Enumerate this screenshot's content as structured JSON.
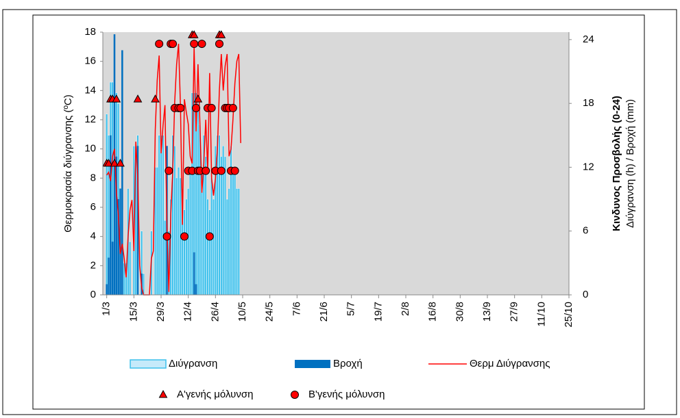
{
  "chart_data": {
    "type": "combo",
    "y_label": "Θερμοκρασία διύγρανσης (ºC)",
    "y2_label": "Κινδυνος Προσβολής (0-24)",
    "y2_sublabel": "Διύγρανση (h) / Βροχή (mm)",
    "xlim": [
      -2,
      238
    ],
    "xticks": [
      {
        "value": 0,
        "label": "1/3"
      },
      {
        "value": 14,
        "label": "15/3"
      },
      {
        "value": 28,
        "label": "29/3"
      },
      {
        "value": 42,
        "label": "12/4"
      },
      {
        "value": 56,
        "label": "26/4"
      },
      {
        "value": 70,
        "label": "10/5"
      },
      {
        "value": 84,
        "label": "24/5"
      },
      {
        "value": 98,
        "label": "7/6"
      },
      {
        "value": 112,
        "label": "21/6"
      },
      {
        "value": 126,
        "label": "5/7"
      },
      {
        "value": 140,
        "label": "19/7"
      },
      {
        "value": 154,
        "label": "2/8"
      },
      {
        "value": 168,
        "label": "16/8"
      },
      {
        "value": 182,
        "label": "30/8"
      },
      {
        "value": 196,
        "label": "13/9"
      },
      {
        "value": 210,
        "label": "27/9"
      },
      {
        "value": 224,
        "label": "11/10"
      },
      {
        "value": 238,
        "label": "25/10"
      }
    ],
    "ylim": [
      0,
      18
    ],
    "yticks": [
      0,
      2,
      4,
      6,
      8,
      10,
      12,
      14,
      16,
      18
    ],
    "y2lim": [
      0,
      24.7
    ],
    "y2ticks": [
      0,
      6,
      12,
      18,
      24
    ],
    "grid": false,
    "background": "#d9d9d9",
    "x": [
      0,
      1,
      2,
      3,
      4,
      5,
      6,
      7,
      8,
      9,
      10,
      11,
      12,
      13,
      14,
      15,
      16,
      17,
      18,
      19,
      20,
      21,
      22,
      23,
      24,
      25,
      26,
      27,
      28,
      29,
      30,
      31,
      32,
      33,
      34,
      35,
      36,
      37,
      38,
      39,
      40,
      41,
      42,
      43,
      44,
      45,
      46,
      47,
      48,
      49,
      50,
      51,
      52,
      53,
      54,
      55,
      56,
      57,
      58,
      59,
      60,
      61,
      62,
      63,
      64,
      65,
      66,
      67,
      68,
      69
    ],
    "series": [
      {
        "name": "Διύγρανση",
        "type": "bar",
        "axis": "y2",
        "color": "#3cc0ec",
        "values": [
          17,
          15,
          20,
          20,
          19,
          19,
          18,
          10,
          8,
          3,
          3,
          10,
          5,
          0,
          14,
          14,
          15,
          0,
          6,
          2,
          0,
          0,
          0,
          6,
          0,
          12,
          12,
          15,
          15,
          15,
          7,
          12,
          6,
          9,
          15,
          14,
          11,
          12,
          11,
          10,
          8,
          9,
          10,
          12,
          19,
          19,
          19,
          18,
          16,
          12,
          15,
          13,
          9,
          8,
          11,
          9,
          14,
          15,
          15,
          13,
          14,
          13,
          9,
          10,
          14,
          12,
          12,
          10,
          10,
          0
        ]
      },
      {
        "name": "Βροχή",
        "type": "bar",
        "axis": "y2",
        "color": "#0070c0",
        "values": [
          1,
          3.5,
          15,
          5,
          24.5,
          13,
          9,
          10,
          23,
          0,
          0,
          0,
          0,
          0,
          0,
          0,
          14,
          0,
          2,
          0,
          0,
          0,
          0,
          0,
          0,
          0,
          0,
          0,
          0,
          0,
          0,
          14,
          0,
          0,
          0,
          0,
          0,
          0,
          0,
          0,
          0,
          0,
          0,
          0,
          0,
          4,
          1,
          0,
          0,
          0,
          0,
          0,
          0,
          0,
          0,
          0,
          0,
          0,
          0,
          0,
          0,
          0,
          0,
          0,
          0,
          0,
          0,
          0,
          0,
          0
        ]
      },
      {
        "name": "Θερμ Διύγρανσης",
        "type": "line",
        "axis": "y",
        "color": "#ff0000",
        "values": [
          8.2,
          8.4,
          7.8,
          9.5,
          10,
          7,
          5.5,
          2.8,
          3.5,
          2.5,
          1.2,
          4,
          5.8,
          6.5,
          3,
          10.5,
          8,
          2,
          0.5,
          0,
          0,
          0,
          0,
          2.5,
          3,
          11.3,
          14.7,
          16.4,
          9.7,
          11.6,
          13,
          4.8,
          0.2,
          5.5,
          8.5,
          13.2,
          15.8,
          17.2,
          12.8,
          4.8,
          13.4,
          12.5,
          11.7,
          9.5,
          9,
          17,
          11.2,
          15.8,
          11.7,
          7,
          9,
          12,
          8.5,
          15.2,
          8,
          6.8,
          8,
          10,
          14,
          16.5,
          14,
          15.7,
          16.5,
          9.5,
          10,
          12,
          14.5,
          16,
          16.5,
          10.4
        ]
      },
      {
        "name": "Α'γενής μόλυνση",
        "type": "scatter",
        "marker": "triangle",
        "axis": "y",
        "color": "#ff0000",
        "x": [
          0,
          1,
          2,
          3,
          4,
          5,
          7,
          16,
          25,
          44,
          45,
          47,
          58,
          59
        ],
        "values": [
          9,
          9,
          13.4,
          13.4,
          9,
          13.4,
          9,
          13.4,
          13.4,
          17.8,
          17.8,
          13.4,
          17.8,
          17.8
        ]
      },
      {
        "name": "Β'γενής μόλυνση",
        "type": "scatter",
        "marker": "circle",
        "axis": "y",
        "color": "#ff0000",
        "x": [
          27,
          31,
          32,
          33,
          34,
          35,
          37,
          38,
          40,
          42,
          44,
          45,
          46,
          47,
          48,
          49,
          51,
          52,
          53,
          54,
          56,
          58,
          59,
          61,
          62,
          63,
          64,
          65,
          66
        ],
        "values": [
          17.2,
          4,
          8.5,
          17.2,
          17.2,
          12.8,
          12.8,
          12.8,
          4,
          8.5,
          8.5,
          17.2,
          12.8,
          8.5,
          8.5,
          17.2,
          8.5,
          12.8,
          4,
          12.8,
          8.5,
          17.2,
          8.5,
          12.8,
          12.8,
          12.8,
          8.5,
          12.8,
          8.5
        ]
      }
    ]
  }
}
